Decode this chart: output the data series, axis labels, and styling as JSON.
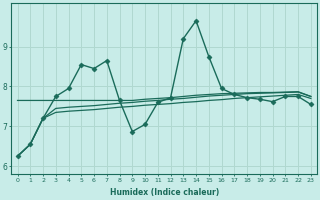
{
  "xlabel": "Humidex (Indice chaleur)",
  "ylabel": "",
  "background_color": "#c8ece8",
  "grid_color": "#b0d8d0",
  "line_color": "#1a6b5a",
  "xlim": [
    -0.5,
    23.5
  ],
  "ylim": [
    5.8,
    10.1
  ],
  "yticks": [
    6,
    7,
    8,
    9
  ],
  "xticks": [
    0,
    1,
    2,
    3,
    4,
    5,
    6,
    7,
    8,
    9,
    10,
    11,
    12,
    13,
    14,
    15,
    16,
    17,
    18,
    19,
    20,
    21,
    22,
    23
  ],
  "series": [
    {
      "x": [
        0,
        1,
        2,
        3,
        4,
        5,
        6,
        7,
        8,
        9,
        10,
        11,
        12,
        13,
        14,
        15,
        16,
        17,
        18,
        19,
        20,
        21,
        22,
        23
      ],
      "y": [
        6.25,
        6.55,
        7.2,
        7.75,
        7.95,
        8.55,
        8.45,
        8.65,
        7.65,
        6.87,
        7.05,
        7.6,
        7.72,
        9.2,
        9.65,
        8.75,
        7.95,
        7.8,
        7.72,
        7.68,
        7.62,
        7.75,
        7.75,
        7.55
      ],
      "marker": "D",
      "markersize": 2.5,
      "linewidth": 1.0
    },
    {
      "x": [
        0,
        1,
        2,
        3,
        4,
        5,
        6,
        7,
        8,
        9,
        10,
        11,
        12,
        13,
        14,
        15,
        16,
        17,
        18,
        19,
        20,
        21,
        22,
        23
      ],
      "y": [
        7.65,
        7.65,
        7.65,
        7.65,
        7.65,
        7.65,
        7.65,
        7.65,
        7.65,
        7.65,
        7.68,
        7.7,
        7.72,
        7.75,
        7.78,
        7.8,
        7.82,
        7.83,
        7.84,
        7.85,
        7.85,
        7.86,
        7.87,
        7.75
      ],
      "marker": null,
      "markersize": 0,
      "linewidth": 0.9
    },
    {
      "x": [
        0,
        1,
        2,
        3,
        4,
        5,
        6,
        7,
        8,
        9,
        10,
        11,
        12,
        13,
        14,
        15,
        16,
        17,
        18,
        19,
        20,
        21,
        22,
        23
      ],
      "y": [
        6.25,
        6.55,
        7.2,
        7.45,
        7.48,
        7.5,
        7.52,
        7.55,
        7.58,
        7.6,
        7.63,
        7.65,
        7.68,
        7.7,
        7.73,
        7.76,
        7.78,
        7.8,
        7.82,
        7.83,
        7.84,
        7.85,
        7.86,
        7.75
      ],
      "marker": null,
      "markersize": 0,
      "linewidth": 0.9
    },
    {
      "x": [
        0,
        1,
        2,
        3,
        4,
        5,
        6,
        7,
        8,
        9,
        10,
        11,
        12,
        13,
        14,
        15,
        16,
        17,
        18,
        19,
        20,
        21,
        22,
        23
      ],
      "y": [
        6.25,
        6.55,
        7.2,
        7.35,
        7.38,
        7.4,
        7.42,
        7.45,
        7.48,
        7.5,
        7.53,
        7.55,
        7.57,
        7.6,
        7.62,
        7.65,
        7.67,
        7.7,
        7.72,
        7.74,
        7.76,
        7.78,
        7.8,
        7.7
      ],
      "marker": null,
      "markersize": 0,
      "linewidth": 0.9
    }
  ]
}
